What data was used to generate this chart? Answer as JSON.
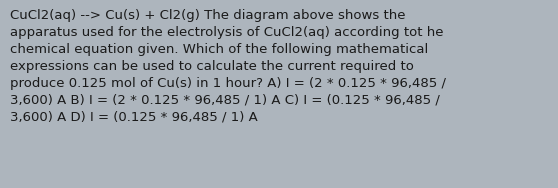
{
  "background_color": "#adb5bd",
  "font_size": 9.5,
  "font_family": "DejaVu Sans",
  "font_weight": "normal",
  "text_color": "#1a1a1a",
  "figwidth": 5.58,
  "figheight": 1.88,
  "dpi": 100,
  "line1": "CuCl2(aq) --> Cu(s) + Cl2(g) The diagram above shows the",
  "line2": "apparatus used for the electrolysis of CuCl2(aq) according tot he",
  "line3": "chemical equation given. Which of the following mathematical",
  "line4": "expressions can be used to calculate the current required to",
  "line5": "produce 0.125 mol of Cu(s) in 1 hour? A) I = (2 * 0.125 * 96,485 /",
  "line6": "3,600) A B) I = (2 * 0.125 * 96,485 / 1) A C) I = (0.125 * 96,485 /",
  "line7": "3,600) A D) I = (0.125 * 96,485 / 1) A"
}
